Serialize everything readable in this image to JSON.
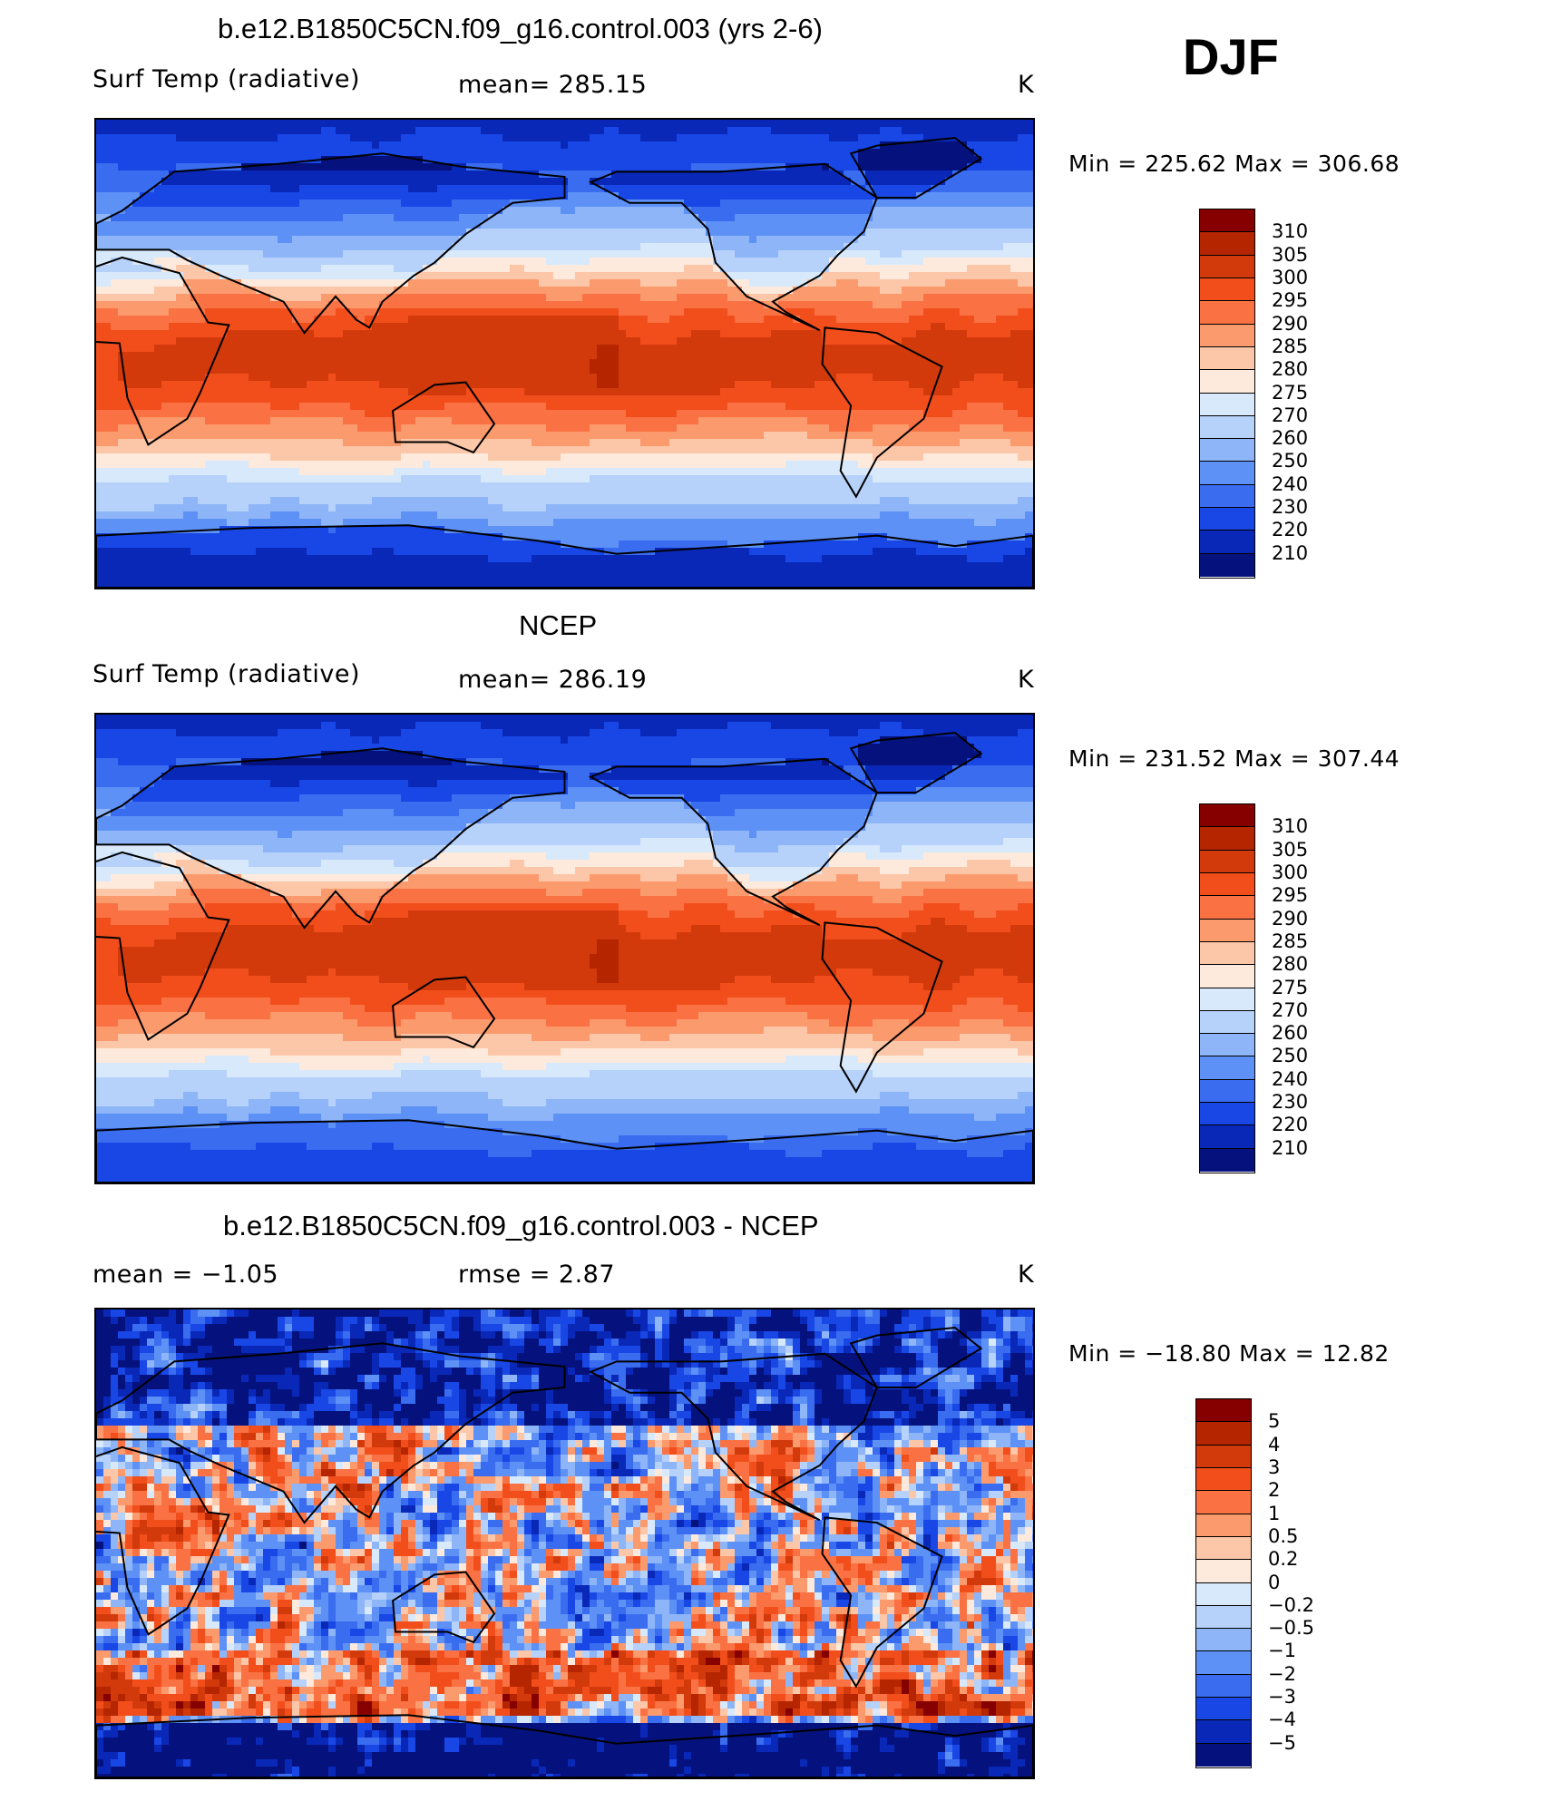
{
  "season": "DJF",
  "panels": [
    {
      "title": "b.e12.B1850C5CN.f09_g16.control.003 (yrs 2-6)",
      "left_label": "Surf Temp (radiative)",
      "center_label": "mean=  285.15",
      "units": "K",
      "minmax": "Min  =  225.62  Max  =  306.68",
      "kind": "abs",
      "colorbar_labels": [
        "310",
        "305",
        "300",
        "295",
        "290",
        "285",
        "280",
        "275",
        "270",
        "260",
        "250",
        "240",
        "230",
        "220",
        "210"
      ],
      "colorbar_colors": [
        "#870000",
        "#b52500",
        "#d23a0c",
        "#f24e1c",
        "#fa7244",
        "#fb9a6c",
        "#fcc6a8",
        "#fdeadd",
        "#d8e9fb",
        "#b6d1fa",
        "#8db5f8",
        "#5e91f5",
        "#3a6cf0",
        "#1847e6",
        "#0a28b8",
        "#05127d"
      ]
    },
    {
      "title": "NCEP",
      "left_label": "Surf Temp (radiative)",
      "center_label": "mean=  286.19",
      "units": "K",
      "minmax": "Min  =  231.52  Max  =  307.44",
      "kind": "abs",
      "colorbar_labels": [
        "310",
        "305",
        "300",
        "295",
        "290",
        "285",
        "280",
        "275",
        "270",
        "260",
        "250",
        "240",
        "230",
        "220",
        "210"
      ],
      "colorbar_colors": [
        "#870000",
        "#b52500",
        "#d23a0c",
        "#f24e1c",
        "#fa7244",
        "#fb9a6c",
        "#fcc6a8",
        "#fdeadd",
        "#d8e9fb",
        "#b6d1fa",
        "#8db5f8",
        "#5e91f5",
        "#3a6cf0",
        "#1847e6",
        "#0a28b8",
        "#05127d"
      ]
    },
    {
      "title": "b.e12.B1850C5CN.f09_g16.control.003 - NCEP",
      "left_label": "mean  =    −1.05",
      "center_label": "rmse  =     2.87",
      "units": "K",
      "minmax": "Min  =  −18.80  Max  =    12.82",
      "kind": "diff",
      "colorbar_labels": [
        "5",
        "4",
        "3",
        "2",
        "1",
        "0.5",
        "0.2",
        "0",
        "−0.2",
        "−0.5",
        "−1",
        "−2",
        "−3",
        "−4",
        "−5"
      ],
      "colorbar_colors": [
        "#870000",
        "#b52500",
        "#d23a0c",
        "#f24e1c",
        "#fa7244",
        "#fb9a6c",
        "#fcc6a8",
        "#fdeadd",
        "#d8e9fb",
        "#b6d1fa",
        "#8db5f8",
        "#5e91f5",
        "#3a6cf0",
        "#1847e6",
        "#0a28b8",
        "#05127d"
      ]
    }
  ]
}
